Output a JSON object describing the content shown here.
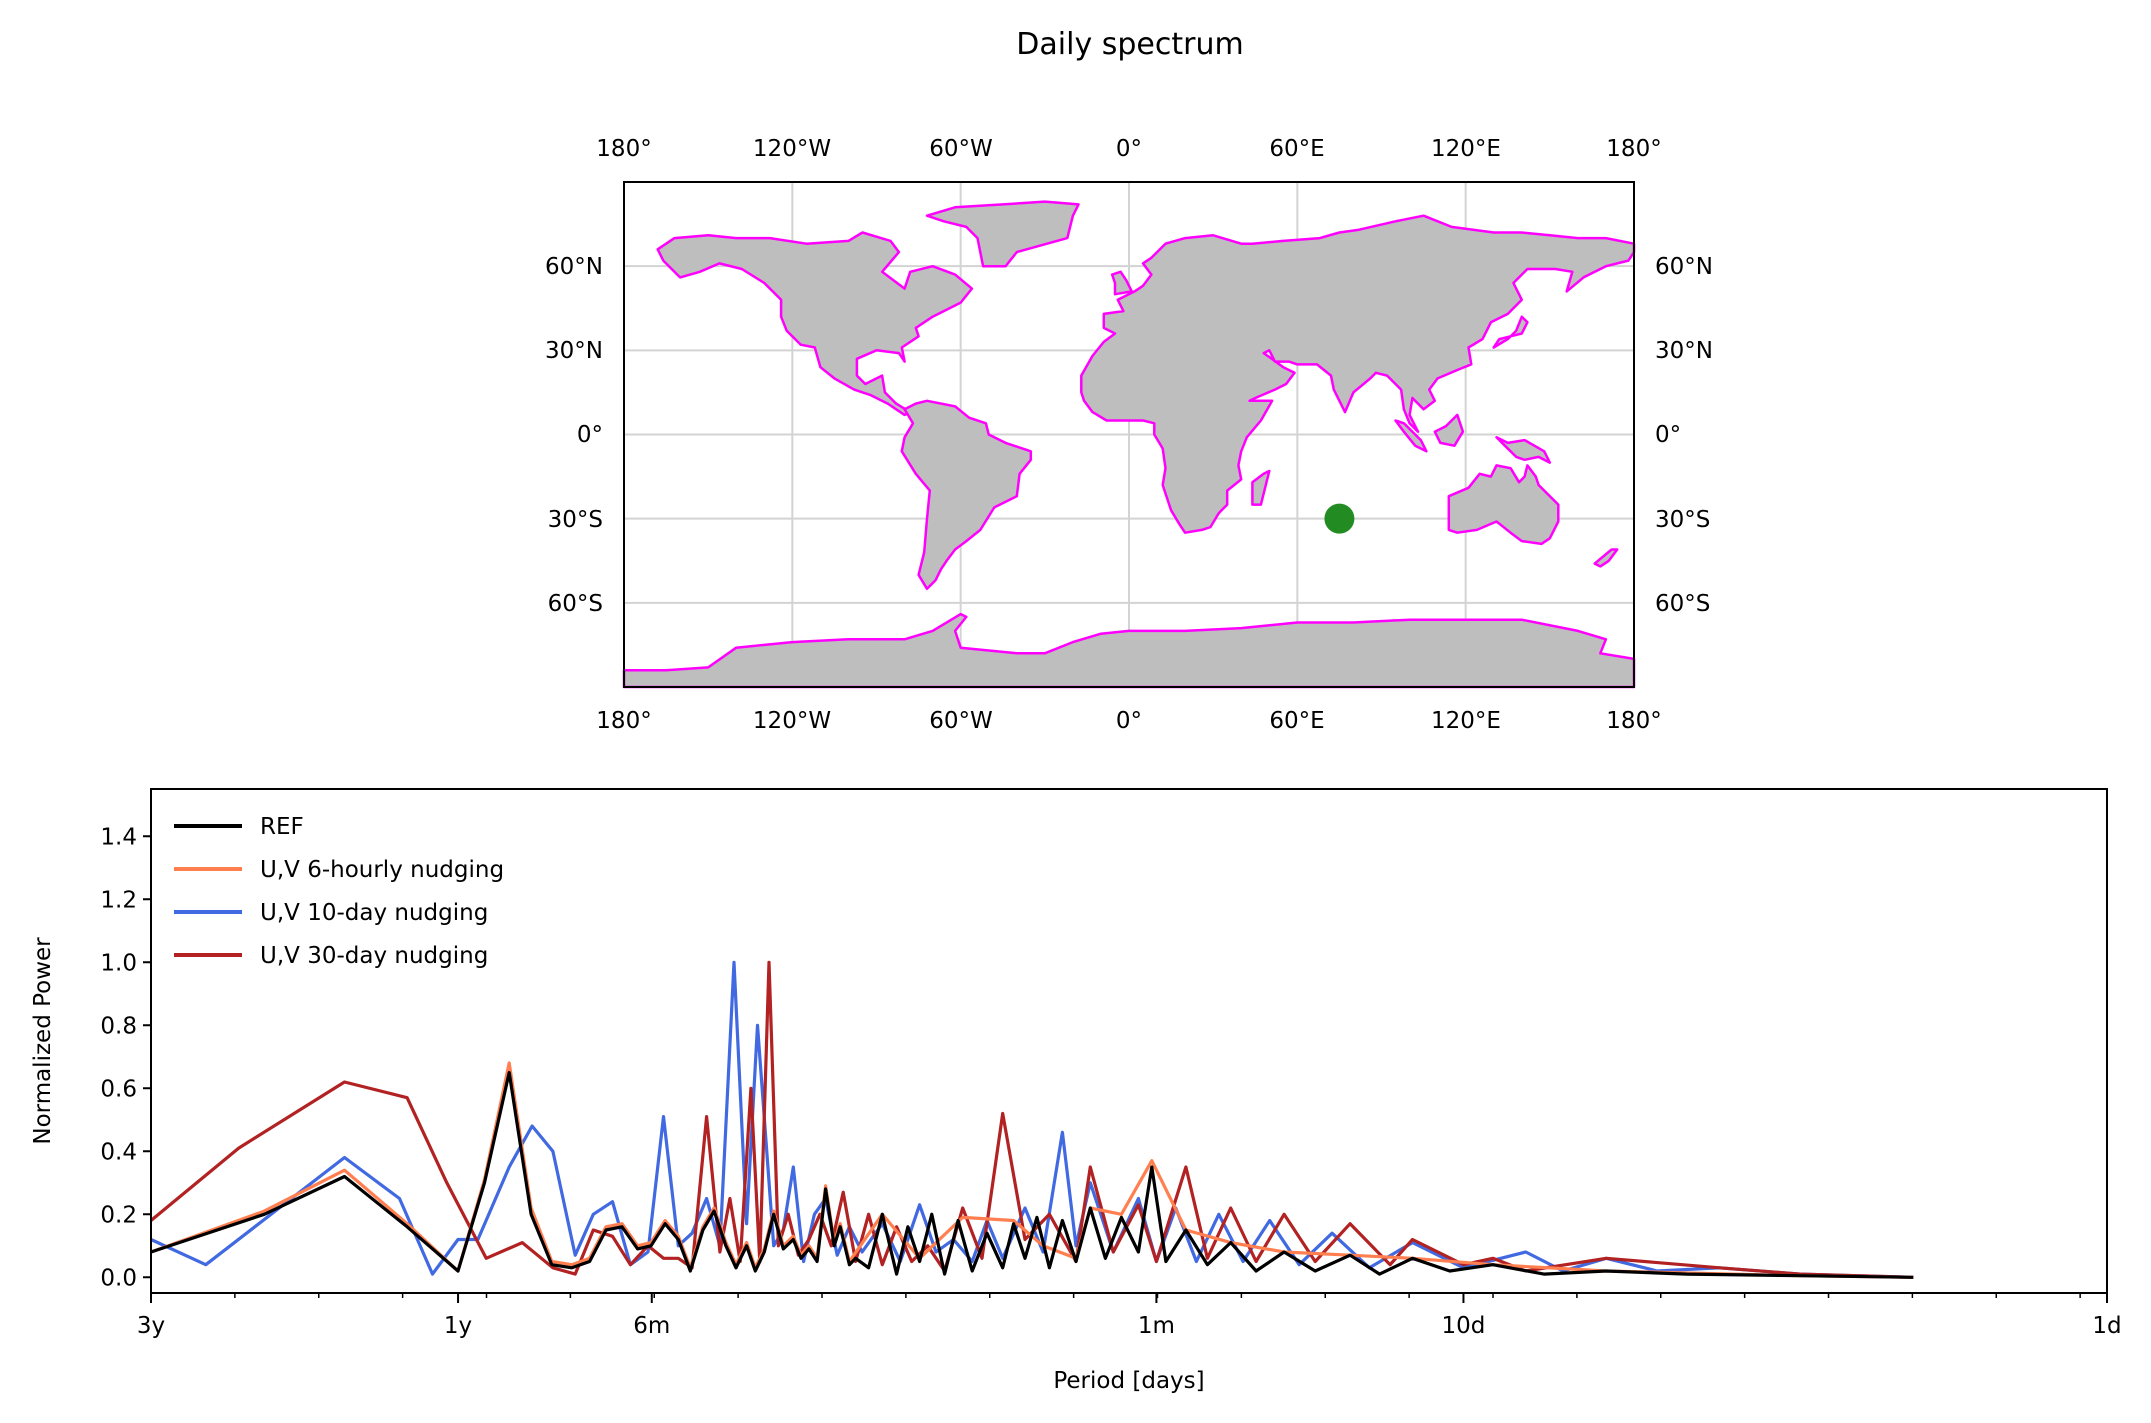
{
  "title": "Daily spectrum",
  "map": {
    "lon_ticks": [
      "180°",
      "120°W",
      "60°W",
      "0°",
      "60°E",
      "120°E",
      "180°"
    ],
    "lat_ticks": [
      "60°N",
      "30°N",
      "0°",
      "30°S",
      "60°S"
    ],
    "marker": {
      "lon": 75,
      "lat": -30,
      "color": "#228b22"
    },
    "land_color": "#bebebe",
    "coast_color": "#ff00ff",
    "grid_color": "#d3d3d3"
  },
  "chart_data": {
    "type": "line",
    "xlabel": "Period [days]",
    "ylabel": "Normalized Power",
    "x_scale": "log (1/period)",
    "x_ticks": [
      {
        "label": "3y",
        "period_days": 1095
      },
      {
        "label": "1y",
        "period_days": 365
      },
      {
        "label": "6m",
        "period_days": 182.5
      },
      {
        "label": "1m",
        "period_days": 30
      },
      {
        "label": "10d",
        "period_days": 10
      },
      {
        "label": "1d",
        "period_days": 1
      }
    ],
    "xlim_period_days": [
      1095,
      1
    ],
    "ylim": [
      -0.05,
      1.55
    ],
    "y_ticks": [
      "0.0",
      "0.2",
      "0.4",
      "0.6",
      "0.8",
      "1.0",
      "1.2",
      "1.4"
    ],
    "legend_position": "top-left",
    "series": [
      {
        "name": "REF",
        "color": "#000000",
        "points": [
          [
            1095,
            0.08
          ],
          [
            730,
            0.2
          ],
          [
            548,
            0.32
          ],
          [
            438,
            0.16
          ],
          [
            365,
            0.02
          ],
          [
            332,
            0.3
          ],
          [
            304,
            0.65
          ],
          [
            281,
            0.2
          ],
          [
            261,
            0.04
          ],
          [
            243,
            0.03
          ],
          [
            228,
            0.05
          ],
          [
            215,
            0.15
          ],
          [
            203,
            0.16
          ],
          [
            192,
            0.09
          ],
          [
            183,
            0.1
          ],
          [
            174,
            0.17
          ],
          [
            166,
            0.12
          ],
          [
            159,
            0.02
          ],
          [
            152,
            0.15
          ],
          [
            146,
            0.21
          ],
          [
            140,
            0.1
          ],
          [
            135,
            0.03
          ],
          [
            130,
            0.1
          ],
          [
            126,
            0.02
          ],
          [
            122,
            0.08
          ],
          [
            118,
            0.2
          ],
          [
            114,
            0.09
          ],
          [
            110,
            0.12
          ],
          [
            107,
            0.06
          ],
          [
            104,
            0.09
          ],
          [
            101,
            0.05
          ],
          [
            98,
            0.28
          ],
          [
            95,
            0.1
          ],
          [
            93,
            0.16
          ],
          [
            90,
            0.04
          ],
          [
            88,
            0.06
          ],
          [
            84,
            0.03
          ],
          [
            80,
            0.2
          ],
          [
            76,
            0.01
          ],
          [
            73,
            0.16
          ],
          [
            70,
            0.05
          ],
          [
            67,
            0.2
          ],
          [
            64,
            0.01
          ],
          [
            61,
            0.18
          ],
          [
            58,
            0.02
          ],
          [
            55,
            0.14
          ],
          [
            52,
            0.03
          ],
          [
            50,
            0.17
          ],
          [
            48,
            0.06
          ],
          [
            46,
            0.19
          ],
          [
            44,
            0.03
          ],
          [
            42,
            0.18
          ],
          [
            40,
            0.05
          ],
          [
            38,
            0.22
          ],
          [
            36,
            0.06
          ],
          [
            34,
            0.19
          ],
          [
            32,
            0.08
          ],
          [
            30.5,
            0.35
          ],
          [
            29,
            0.05
          ],
          [
            27,
            0.15
          ],
          [
            25,
            0.04
          ],
          [
            23,
            0.11
          ],
          [
            21,
            0.02
          ],
          [
            19,
            0.08
          ],
          [
            17,
            0.02
          ],
          [
            15,
            0.07
          ],
          [
            13.5,
            0.01
          ],
          [
            12,
            0.06
          ],
          [
            10.5,
            0.02
          ],
          [
            9,
            0.04
          ],
          [
            7.5,
            0.01
          ],
          [
            6,
            0.02
          ],
          [
            4.5,
            0.01
          ],
          [
            3,
            0.005
          ],
          [
            2,
            0.0
          ]
        ]
      },
      {
        "name": "U,V 6-hourly nudging",
        "color": "#ff7f50",
        "points": [
          [
            1095,
            0.08
          ],
          [
            730,
            0.21
          ],
          [
            548,
            0.34
          ],
          [
            438,
            0.17
          ],
          [
            365,
            0.02
          ],
          [
            332,
            0.31
          ],
          [
            304,
            0.68
          ],
          [
            281,
            0.22
          ],
          [
            261,
            0.05
          ],
          [
            243,
            0.04
          ],
          [
            228,
            0.06
          ],
          [
            215,
            0.16
          ],
          [
            203,
            0.17
          ],
          [
            192,
            0.1
          ],
          [
            183,
            0.11
          ],
          [
            174,
            0.18
          ],
          [
            166,
            0.13
          ],
          [
            159,
            0.03
          ],
          [
            152,
            0.16
          ],
          [
            146,
            0.22
          ],
          [
            140,
            0.11
          ],
          [
            135,
            0.04
          ],
          [
            130,
            0.11
          ],
          [
            126,
            0.03
          ],
          [
            122,
            0.09
          ],
          [
            118,
            0.21
          ],
          [
            114,
            0.1
          ],
          [
            110,
            0.13
          ],
          [
            107,
            0.07
          ],
          [
            104,
            0.1
          ],
          [
            101,
            0.06
          ],
          [
            98,
            0.29
          ],
          [
            95,
            0.11
          ],
          [
            93,
            0.17
          ],
          [
            90,
            0.05
          ],
          [
            80,
            0.2
          ],
          [
            70,
            0.06
          ],
          [
            60,
            0.19
          ],
          [
            50,
            0.18
          ],
          [
            45,
            0.1
          ],
          [
            40,
            0.06
          ],
          [
            38,
            0.22
          ],
          [
            34,
            0.2
          ],
          [
            30.5,
            0.37
          ],
          [
            27,
            0.15
          ],
          [
            23,
            0.11
          ],
          [
            19,
            0.08
          ],
          [
            15,
            0.07
          ],
          [
            12,
            0.06
          ],
          [
            9,
            0.04
          ],
          [
            6,
            0.02
          ],
          [
            3,
            0.005
          ],
          [
            2,
            0.0
          ]
        ]
      },
      {
        "name": "U,V 10-day nudging",
        "color": "#4169e1",
        "points": [
          [
            1095,
            0.12
          ],
          [
            900,
            0.04
          ],
          [
            548,
            0.38
          ],
          [
            450,
            0.25
          ],
          [
            400,
            0.01
          ],
          [
            365,
            0.12
          ],
          [
            340,
            0.12
          ],
          [
            304,
            0.35
          ],
          [
            280,
            0.48
          ],
          [
            260,
            0.4
          ],
          [
            240,
            0.07
          ],
          [
            225,
            0.2
          ],
          [
            210,
            0.24
          ],
          [
            197,
            0.04
          ],
          [
            185,
            0.08
          ],
          [
            175,
            0.51
          ],
          [
            166,
            0.1
          ],
          [
            158,
            0.14
          ],
          [
            150,
            0.25
          ],
          [
            143,
            0.1
          ],
          [
            136,
            1.0
          ],
          [
            130,
            0.17
          ],
          [
            125,
            0.8
          ],
          [
            118,
            0.1
          ],
          [
            114,
            0.15
          ],
          [
            110,
            0.35
          ],
          [
            106,
            0.05
          ],
          [
            102,
            0.2
          ],
          [
            98,
            0.25
          ],
          [
            94,
            0.07
          ],
          [
            90,
            0.16
          ],
          [
            86,
            0.08
          ],
          [
            80,
            0.17
          ],
          [
            75,
            0.05
          ],
          [
            70,
            0.23
          ],
          [
            66,
            0.08
          ],
          [
            62,
            0.12
          ],
          [
            58,
            0.05
          ],
          [
            55,
            0.18
          ],
          [
            52,
            0.06
          ],
          [
            48,
            0.22
          ],
          [
            45,
            0.08
          ],
          [
            42,
            0.46
          ],
          [
            40,
            0.1
          ],
          [
            38,
            0.3
          ],
          [
            35,
            0.08
          ],
          [
            32,
            0.25
          ],
          [
            30,
            0.05
          ],
          [
            28,
            0.22
          ],
          [
            26,
            0.05
          ],
          [
            24,
            0.2
          ],
          [
            22,
            0.05
          ],
          [
            20,
            0.18
          ],
          [
            18,
            0.04
          ],
          [
            16,
            0.14
          ],
          [
            14,
            0.03
          ],
          [
            12,
            0.11
          ],
          [
            10,
            0.03
          ],
          [
            8,
            0.08
          ],
          [
            7,
            0.02
          ],
          [
            6,
            0.06
          ],
          [
            5,
            0.02
          ],
          [
            4,
            0.03
          ],
          [
            3,
            0.01
          ],
          [
            2,
            0.0
          ]
        ]
      },
      {
        "name": "U,V 30-day nudging",
        "color": "#b22222",
        "points": [
          [
            1095,
            0.18
          ],
          [
            800,
            0.41
          ],
          [
            548,
            0.62
          ],
          [
            438,
            0.57
          ],
          [
            380,
            0.3
          ],
          [
            330,
            0.06
          ],
          [
            290,
            0.11
          ],
          [
            260,
            0.03
          ],
          [
            240,
            0.01
          ],
          [
            225,
            0.15
          ],
          [
            210,
            0.13
          ],
          [
            197,
            0.04
          ],
          [
            185,
            0.1
          ],
          [
            175,
            0.06
          ],
          [
            166,
            0.06
          ],
          [
            158,
            0.03
          ],
          [
            150,
            0.51
          ],
          [
            143,
            0.08
          ],
          [
            138,
            0.25
          ],
          [
            133,
            0.05
          ],
          [
            128,
            0.6
          ],
          [
            124,
            0.05
          ],
          [
            120,
            1.0
          ],
          [
            116,
            0.1
          ],
          [
            112,
            0.2
          ],
          [
            108,
            0.07
          ],
          [
            104,
            0.12
          ],
          [
            100,
            0.2
          ],
          [
            96,
            0.1
          ],
          [
            92,
            0.27
          ],
          [
            88,
            0.05
          ],
          [
            84,
            0.2
          ],
          [
            80,
            0.04
          ],
          [
            76,
            0.16
          ],
          [
            72,
            0.05
          ],
          [
            68,
            0.1
          ],
          [
            64,
            0.02
          ],
          [
            60,
            0.22
          ],
          [
            56,
            0.06
          ],
          [
            52,
            0.52
          ],
          [
            48,
            0.12
          ],
          [
            44,
            0.2
          ],
          [
            40,
            0.05
          ],
          [
            38,
            0.35
          ],
          [
            35,
            0.08
          ],
          [
            32,
            0.23
          ],
          [
            30,
            0.05
          ],
          [
            27,
            0.35
          ],
          [
            25,
            0.06
          ],
          [
            23,
            0.22
          ],
          [
            21,
            0.05
          ],
          [
            19,
            0.2
          ],
          [
            17,
            0.05
          ],
          [
            15,
            0.17
          ],
          [
            13,
            0.04
          ],
          [
            12,
            0.12
          ],
          [
            10,
            0.04
          ],
          [
            9,
            0.06
          ],
          [
            8,
            0.02
          ],
          [
            6,
            0.06
          ],
          [
            4,
            0.03
          ],
          [
            3,
            0.01
          ],
          [
            2,
            0.0
          ]
        ]
      }
    ]
  }
}
